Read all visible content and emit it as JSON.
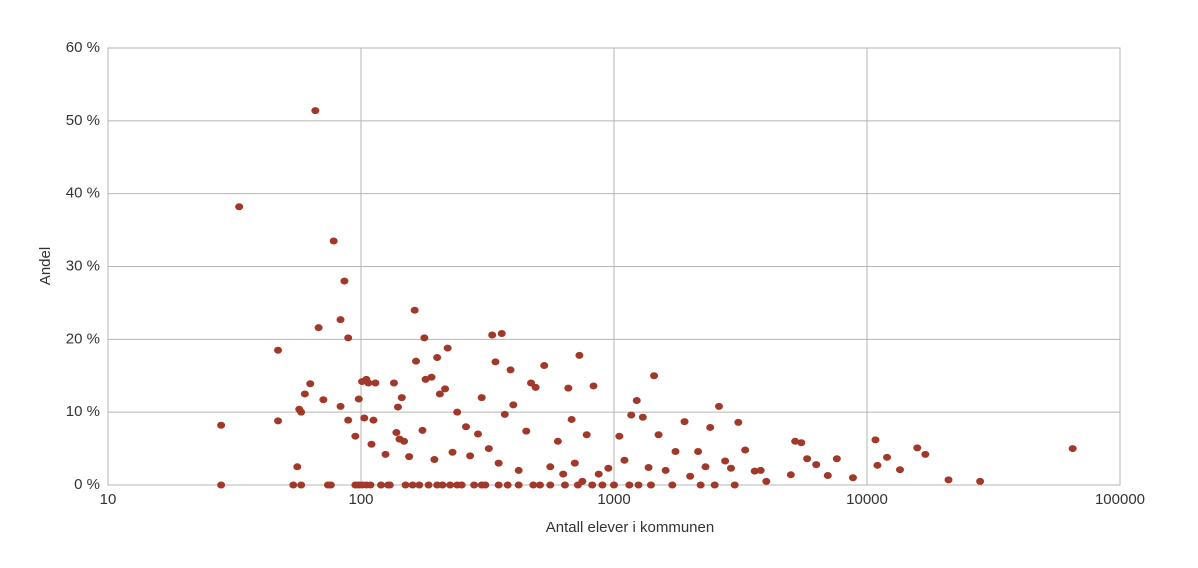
{
  "chart_data": {
    "type": "scatter",
    "x_label": "Antall elever i kommunen",
    "y_label": "Andel",
    "x_scale": "log",
    "grid": true,
    "xlim": [
      10,
      100000
    ],
    "xticks": [
      10,
      100,
      1000,
      10000,
      100000
    ],
    "ylim": [
      0,
      60
    ],
    "yticks": [
      {
        "value": 0,
        "label": "0 %"
      },
      {
        "value": 10,
        "label": "10 %"
      },
      {
        "value": 20,
        "label": "20 %"
      },
      {
        "value": 30,
        "label": "30 %"
      },
      {
        "value": 40,
        "label": "40 %"
      },
      {
        "value": 50,
        "label": "50 %"
      },
      {
        "value": 60,
        "label": "60 %"
      }
    ],
    "x": [
      28,
      28,
      33,
      47,
      47,
      54,
      58,
      56,
      57,
      58,
      60,
      63,
      66,
      68,
      71,
      74,
      76,
      78,
      83,
      83,
      86,
      89,
      89,
      95,
      98,
      101,
      105,
      109,
      95,
      98,
      101,
      103,
      105,
      107,
      110,
      114,
      112,
      120,
      125,
      128,
      130,
      135,
      138,
      140,
      142,
      145,
      148,
      150,
      155,
      160,
      163,
      165,
      170,
      175,
      178,
      180,
      185,
      190,
      195,
      200,
      205,
      210,
      215,
      220,
      225,
      230,
      240,
      250,
      260,
      270,
      280,
      290,
      300,
      310,
      320,
      330,
      340,
      350,
      360,
      370,
      380,
      390,
      400,
      420,
      450,
      470,
      490,
      510,
      530,
      560,
      600,
      630,
      660,
      680,
      700,
      730,
      750,
      780,
      830,
      870,
      950,
      1000,
      1050,
      1100,
      1170,
      1230,
      1300,
      1370,
      1440,
      1500,
      1600,
      1750,
      1900,
      2000,
      2150,
      2300,
      2400,
      2600,
      2750,
      2900,
      3100,
      3300,
      3600,
      3800,
      4000,
      5000,
      5200,
      5500,
      5800,
      6300,
      7000,
      7600,
      8800,
      10800,
      11000,
      12000,
      13500,
      15800,
      17000,
      21000,
      28000,
      65000,
      200,
      240,
      300,
      350,
      420,
      480,
      560,
      640,
      720,
      820,
      900,
      1150,
      1250,
      1400,
      1700,
      2200,
      2500,
      3000
    ],
    "series": [
      {
        "color": "#a0392a",
        "values": [
          8.2,
          0,
          38.2,
          18.5,
          8.8,
          0,
          0,
          2.5,
          10.4,
          10,
          12.5,
          13.9,
          51.4,
          21.6,
          11.7,
          0,
          0,
          33.5,
          10.8,
          22.7,
          28,
          20.2,
          8.9,
          0,
          0,
          0,
          0,
          0,
          6.7,
          11.8,
          14.2,
          9.2,
          14.5,
          14,
          5.6,
          14,
          8.9,
          0,
          4.2,
          0,
          0,
          14,
          7.2,
          10.7,
          6.3,
          12,
          6,
          0,
          3.9,
          0,
          24,
          17,
          0,
          7.5,
          20.2,
          14.5,
          0,
          14.8,
          3.5,
          17.5,
          12.5,
          0,
          13.2,
          18.8,
          0,
          4.5,
          10,
          0,
          8,
          4,
          0,
          7,
          12,
          0,
          5,
          20.6,
          16.9,
          3,
          20.8,
          9.7,
          0,
          15.8,
          11,
          2,
          7.4,
          14,
          13.4,
          0,
          16.4,
          2.5,
          6,
          1.5,
          13.3,
          9,
          3,
          17.8,
          0.5,
          6.9,
          13.6,
          1.5,
          2.3,
          0,
          6.7,
          3.4,
          9.6,
          11.6,
          9.3,
          2.4,
          15,
          6.9,
          2,
          4.6,
          8.7,
          1.2,
          4.6,
          2.5,
          7.9,
          10.8,
          3.3,
          2.3,
          8.6,
          4.8,
          1.9,
          2,
          0.5,
          1.4,
          6,
          5.8,
          3.6,
          2.8,
          1.3,
          3.6,
          1,
          6.2,
          2.7,
          3.8,
          2.1,
          5.1,
          4.2,
          0.7,
          0.5,
          5,
          0,
          0,
          0,
          0,
          0,
          0,
          0,
          0,
          0,
          0,
          0,
          0,
          0,
          0,
          0,
          0,
          0,
          0
        ]
      }
    ]
  }
}
